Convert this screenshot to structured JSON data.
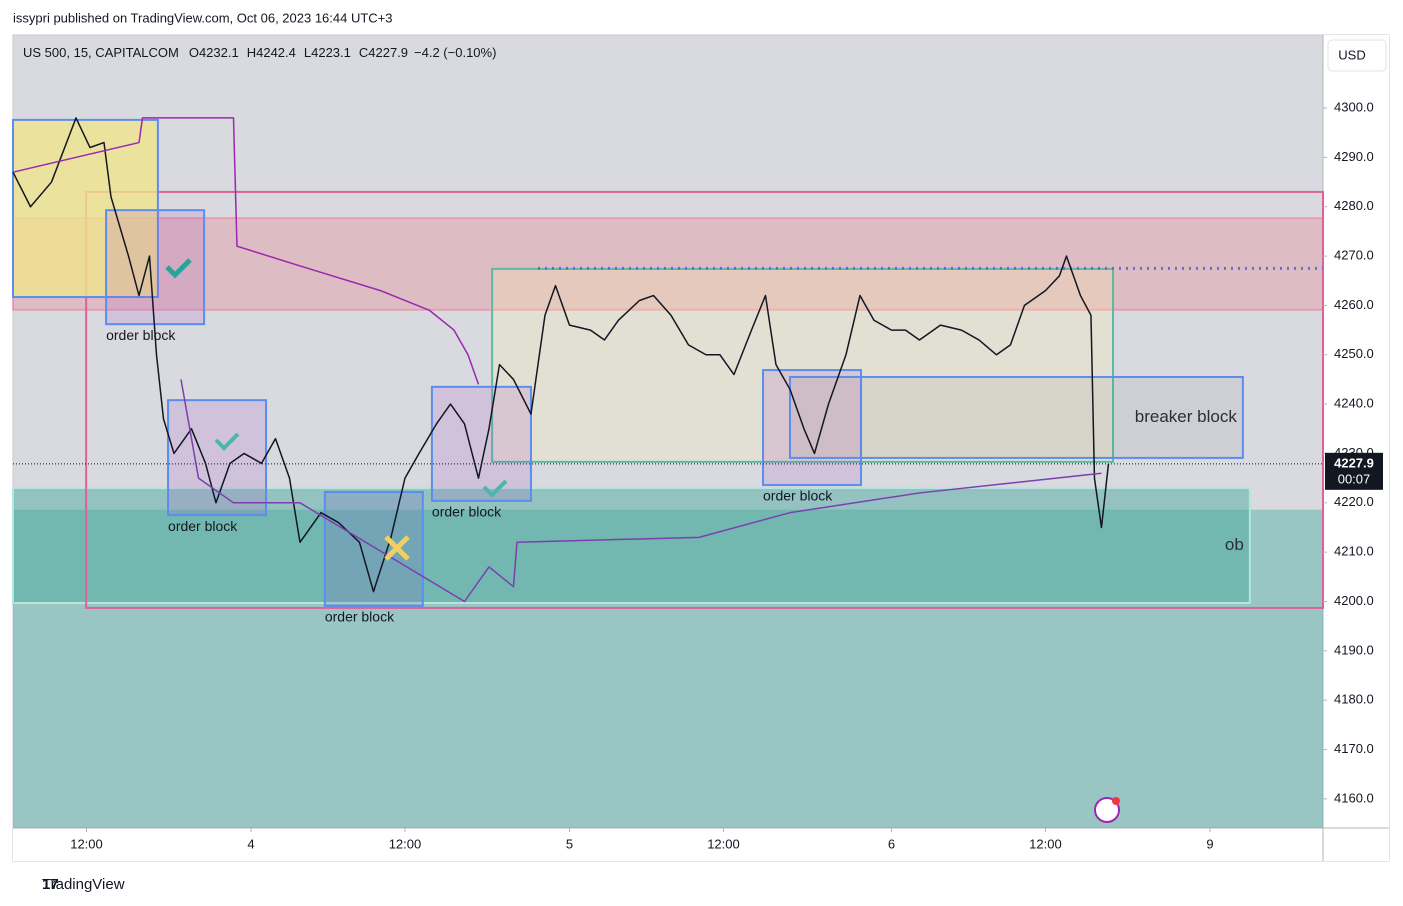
{
  "header": {
    "publisher": "issypri published on TradingView.com, Oct 06, 2023 16:44 UTC+3",
    "footer": "TradingView"
  },
  "chart_data": {
    "type": "line",
    "symbol": "US 500, 15, CAPITALCOM",
    "ohlc": [
      {
        "label": "O",
        "value": 4232.1
      },
      {
        "label": "H",
        "value": 4242.4
      },
      {
        "label": "L",
        "value": 4223.1
      },
      {
        "label": "C",
        "value": 4227.9
      }
    ],
    "change": "−4.2 (−0.10%)",
    "currency": "USD",
    "xlim": [
      0,
      374.3
    ],
    "ylim": [
      4154.1,
      4314.8
    ],
    "xticks": [
      {
        "value": 21,
        "label": "12:00"
      },
      {
        "value": 68,
        "label": "4"
      },
      {
        "value": 112,
        "label": "12:00"
      },
      {
        "value": 159,
        "label": "5"
      },
      {
        "value": 203,
        "label": "12:00"
      },
      {
        "value": 251,
        "label": "6"
      },
      {
        "value": 295,
        "label": "12:00"
      },
      {
        "value": 342,
        "label": "9"
      }
    ],
    "yticks": [
      {
        "value": 4160,
        "label": "4160.0"
      },
      {
        "value": 4170,
        "label": "4170.0"
      },
      {
        "value": 4180,
        "label": "4180.0"
      },
      {
        "value": 4190,
        "label": "4190.0"
      },
      {
        "value": 4200,
        "label": "4200.0"
      },
      {
        "value": 4210,
        "label": "4210.0"
      },
      {
        "value": 4220,
        "label": "4220.0"
      },
      {
        "value": 4230,
        "label": "4230.0"
      },
      {
        "value": 4240,
        "label": "4240.0"
      },
      {
        "value": 4250,
        "label": "4250.0"
      },
      {
        "value": 4260,
        "label": "4260.0"
      },
      {
        "value": 4270,
        "label": "4270.0"
      },
      {
        "value": 4280,
        "label": "4280.0"
      },
      {
        "value": 4290,
        "label": "4290.0"
      },
      {
        "value": 4300,
        "label": "4300.0"
      }
    ],
    "grid": false,
    "zones": [
      {
        "x": [
          0,
          374.3
        ],
        "y": [
          4154.1,
          4218.6
        ],
        "fill": "rgba(77,170,160,0.45)",
        "stroke": "none"
      },
      {
        "x": [
          0,
          353.4
        ],
        "y": [
          4199.7,
          4223
        ],
        "fill": "rgba(77,170,160,0.5)",
        "stroke": "#b2e6df",
        "label": "ob"
      },
      {
        "x": [
          0,
          374.3
        ],
        "y": [
          4259.1,
          4277.7
        ],
        "fill": "rgba(242,54,69,0.18)",
        "stroke": "rgba(242,120,150,0.5)"
      },
      {
        "x": [
          20.9,
          374.3
        ],
        "y": [
          4198.7,
          4283
        ],
        "fill": "none",
        "stroke": "#e0619a"
      },
      {
        "x": [
          136.9,
          314.3
        ],
        "y": [
          4228.3,
          4267.4
        ],
        "fill": "rgba(255,240,170,0.25)",
        "stroke": "#5fb8a2"
      },
      {
        "x": [
          0,
          41.4
        ],
        "y": [
          4261.7,
          4297.6
        ],
        "fill": "rgba(240,228,140,0.8)",
        "stroke": "#5b8def"
      },
      {
        "x": [
          26.6,
          54.6
        ],
        "y": [
          4256.2,
          4279.3
        ],
        "fill": "rgba(170,90,200,0.18)",
        "stroke": "#5b8def",
        "label": "order block"
      },
      {
        "x": [
          44.3,
          72.3
        ],
        "y": [
          4217.5,
          4240.8
        ],
        "fill": "rgba(170,90,200,0.18)",
        "stroke": "#5b8def",
        "label": "order block"
      },
      {
        "x": [
          89.1,
          117.1
        ],
        "y": [
          4199.1,
          4222.2
        ],
        "fill": "rgba(120,110,200,0.25)",
        "stroke": "#5b8def",
        "label": "order block"
      },
      {
        "x": [
          119.7,
          148
        ],
        "y": [
          4220.4,
          4243.5
        ],
        "fill": "rgba(170,90,200,0.18)",
        "stroke": "#5b8def",
        "label": "order block"
      },
      {
        "x": [
          214.3,
          242.3
        ],
        "y": [
          4223.6,
          4246.9
        ],
        "fill": "rgba(170,90,200,0.18)",
        "stroke": "#5b8def",
        "label": "order block"
      },
      {
        "x": [
          222,
          351.4
        ],
        "y": [
          4229.1,
          4245.5
        ],
        "fill": "rgba(120,120,120,0.1)",
        "stroke": "#5b8def",
        "label": "breaker block"
      }
    ],
    "levels": [
      {
        "value": 4267.5,
        "x": [
          150,
          374.3
        ],
        "color": "#5b6ee1"
      }
    ],
    "series": [
      {
        "color": "#131722",
        "width": 1.5,
        "x": [
          0,
          5,
          11,
          18,
          22,
          26,
          28,
          33,
          36,
          39,
          41,
          43,
          46,
          51,
          55,
          58,
          62,
          66,
          71,
          75,
          79,
          82,
          88,
          93,
          99,
          103,
          108,
          112,
          116,
          121,
          125,
          129,
          133,
          136,
          139,
          143,
          148,
          152,
          155,
          159,
          165,
          169,
          173,
          179,
          183,
          188,
          193,
          198,
          202,
          206,
          211,
          215,
          218,
          222,
          226,
          229,
          233,
          238,
          242,
          246,
          251,
          255,
          259,
          265,
          271,
          276,
          281,
          285,
          289,
          295,
          299,
          301,
          305,
          308,
          309,
          311,
          313
        ],
        "values": [
          4287,
          4280,
          4285,
          4298,
          4292,
          4293,
          4282,
          4270,
          4262,
          4270,
          4250,
          4237,
          4230,
          4235,
          4228,
          4220,
          4228,
          4230,
          4228,
          4233,
          4225,
          4212,
          4218,
          4216,
          4212,
          4202,
          4213,
          4225,
          4230,
          4236,
          4240,
          4236,
          4225,
          4235,
          4248,
          4245,
          4238,
          4258,
          4264,
          4256,
          4255,
          4253,
          4257,
          4261,
          4262,
          4258,
          4252,
          4250,
          4250,
          4246,
          4255,
          4262,
          4248,
          4243,
          4235,
          4230,
          4240,
          4250,
          4262,
          4257,
          4255,
          4255,
          4253,
          4256,
          4255,
          4253,
          4250,
          4252,
          4260,
          4263,
          4266,
          4270,
          4262,
          4258,
          4225,
          4215,
          4227.9
        ]
      },
      {
        "color": "#9c27b0",
        "width": 1.5,
        "x": [
          0,
          36,
          37,
          63,
          64,
          82,
          105,
          119,
          126,
          130,
          133
        ],
        "values": [
          4287,
          4293,
          4298,
          4298,
          4272,
          4268,
          4263,
          4259,
          4255,
          4250,
          4244
        ]
      },
      {
        "color": "#7b3fb0",
        "width": 1.5,
        "x": [
          48,
          53,
          63,
          82,
          129,
          136,
          143,
          144,
          196,
          222,
          259,
          311
        ],
        "values": [
          4245,
          4225,
          4220,
          4220,
          4200,
          4207,
          4203,
          4212,
          4213,
          4218,
          4222,
          4226
        ]
      }
    ],
    "last": {
      "value": 4227.9,
      "countdown": "00:07"
    }
  }
}
